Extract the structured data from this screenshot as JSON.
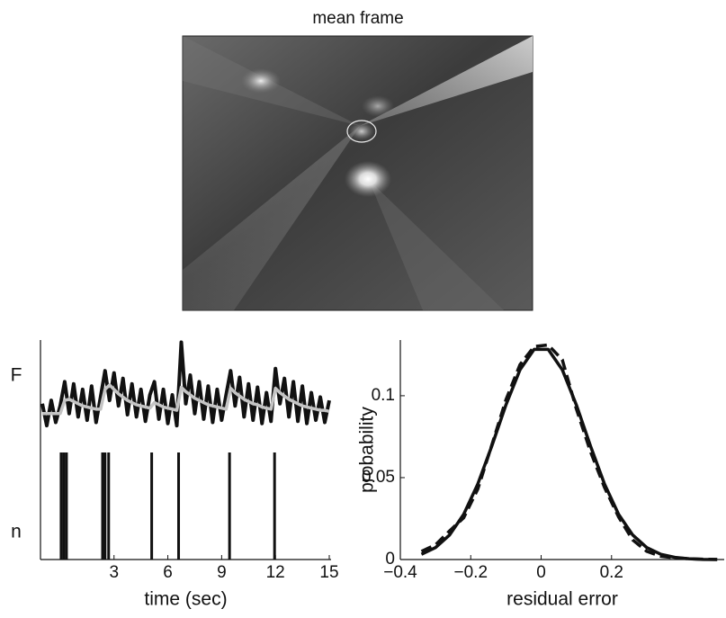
{
  "image_panel": {
    "title": "mean frame"
  },
  "chart_data": [
    {
      "type": "line",
      "xlabel": "time (sec)",
      "ylabel": "F",
      "xlim": [
        -1.1,
        15.1
      ],
      "ylim": [
        0,
        1
      ],
      "xticks": [
        3,
        6,
        9,
        12,
        15
      ],
      "x": [
        -1,
        -0.75,
        -0.5,
        -0.25,
        0,
        0.25,
        0.5,
        0.75,
        1,
        1.25,
        1.5,
        1.75,
        2,
        2.25,
        2.5,
        2.75,
        3,
        3.25,
        3.5,
        3.75,
        4,
        4.25,
        4.5,
        4.75,
        5,
        5.25,
        5.5,
        5.75,
        6,
        6.25,
        6.5,
        6.75,
        7,
        7.25,
        7.5,
        7.75,
        8,
        8.25,
        8.5,
        8.75,
        9,
        9.25,
        9.5,
        9.75,
        10,
        10.25,
        10.5,
        10.75,
        11,
        11.25,
        11.5,
        11.75,
        12,
        12.25,
        12.5,
        12.75,
        13,
        13.25,
        13.5,
        13.75,
        14,
        14.25,
        14.5,
        14.75,
        15
      ],
      "series": [
        {
          "color": "#111111",
          "width": 4,
          "values": [
            0.42,
            0.22,
            0.45,
            0.25,
            0.4,
            0.62,
            0.33,
            0.6,
            0.3,
            0.55,
            0.27,
            0.58,
            0.25,
            0.48,
            0.72,
            0.45,
            0.7,
            0.4,
            0.65,
            0.32,
            0.6,
            0.3,
            0.55,
            0.26,
            0.5,
            0.62,
            0.28,
            0.55,
            0.24,
            0.5,
            0.22,
            0.98,
            0.42,
            0.68,
            0.33,
            0.62,
            0.28,
            0.58,
            0.25,
            0.55,
            0.27,
            0.5,
            0.72,
            0.4,
            0.66,
            0.3,
            0.6,
            0.27,
            0.57,
            0.24,
            0.52,
            0.26,
            0.74,
            0.42,
            0.65,
            0.3,
            0.62,
            0.26,
            0.58,
            0.24,
            0.52,
            0.27,
            0.48,
            0.25,
            0.45
          ]
        },
        {
          "color": "#c4c4c4",
          "width": 3.5,
          "values": [
            0.33,
            0.33,
            0.33,
            0.33,
            0.33,
            0.45,
            0.46,
            0.44,
            0.42,
            0.4,
            0.39,
            0.38,
            0.37,
            0.37,
            0.55,
            0.59,
            0.55,
            0.51,
            0.48,
            0.45,
            0.43,
            0.41,
            0.4,
            0.39,
            0.38,
            0.43,
            0.41,
            0.39,
            0.38,
            0.37,
            0.36,
            0.57,
            0.53,
            0.5,
            0.47,
            0.45,
            0.43,
            0.41,
            0.4,
            0.39,
            0.38,
            0.37,
            0.56,
            0.52,
            0.49,
            0.46,
            0.44,
            0.42,
            0.41,
            0.39,
            0.38,
            0.37,
            0.56,
            0.52,
            0.49,
            0.46,
            0.44,
            0.42,
            0.4,
            0.39,
            0.38,
            0.37,
            0.36,
            0.36,
            0.35
          ]
        }
      ],
      "raster": {
        "ylabel": "n",
        "color": "#111111",
        "ylim": [
          0,
          1
        ],
        "x": [
          0.05,
          0.2,
          0.35,
          2.36,
          2.5,
          2.7,
          5.1,
          6.6,
          9.44,
          11.95
        ],
        "values": [
          1,
          1,
          1,
          1,
          1,
          1,
          1,
          1,
          1,
          1
        ]
      }
    },
    {
      "type": "line",
      "xlabel": "residual error",
      "ylabel": "probability",
      "xlim": [
        -0.4,
        0.52
      ],
      "ylim": [
        0,
        0.134
      ],
      "xticks": [
        {
          "value": -0.4,
          "label": "−0.4"
        },
        {
          "value": -0.2,
          "label": "−0.2"
        },
        0,
        0.2
      ],
      "yticks": [
        0,
        0.05,
        0.1
      ],
      "x": [
        -0.34,
        -0.3,
        -0.26,
        -0.22,
        -0.18,
        -0.14,
        -0.1,
        -0.06,
        -0.02,
        0.02,
        0.06,
        0.1,
        0.14,
        0.18,
        0.22,
        0.26,
        0.3,
        0.34,
        0.38,
        0.42,
        0.46,
        0.5
      ],
      "series": [
        {
          "color": "#111111",
          "width": 3.5,
          "dash": false,
          "values": [
            0.0032,
            0.0073,
            0.015,
            0.0276,
            0.0461,
            0.0694,
            0.0944,
            0.1159,
            0.1283,
            0.1283,
            0.1159,
            0.0944,
            0.0694,
            0.0461,
            0.0276,
            0.015,
            0.0073,
            0.0032,
            0.0013,
            0.0005,
            0.0001,
            0
          ]
        },
        {
          "color": "#111111",
          "width": 3.5,
          "dash": true,
          "values": [
            0.005,
            0.009,
            0.0175,
            0.0255,
            0.043,
            0.07,
            0.0975,
            0.119,
            0.13,
            0.131,
            0.122,
            0.092,
            0.066,
            0.044,
            0.026,
            0.012,
            0.005,
            0.002,
            0.001,
            0.0005,
            0.0002,
            0.0001
          ]
        }
      ]
    }
  ]
}
